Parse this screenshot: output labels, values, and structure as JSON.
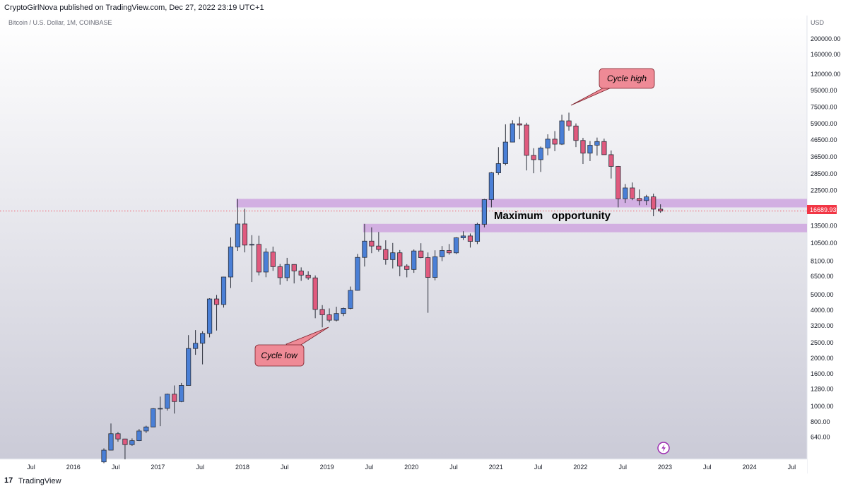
{
  "header": {
    "published": "CryptoGirlNova published on TradingView.com, Dec 27, 2022 23:19 UTC+1"
  },
  "footer": {
    "brand": "TradingView",
    "logo_glyph": "17"
  },
  "chart_data": {
    "type": "candlestick",
    "title": "Bitcoin / U.S. Dollar, 1M, COINBASE",
    "currency": "USD",
    "scale": "log",
    "ylim": [
      470,
      280000
    ],
    "x_ticks": [
      "Jul",
      "2016",
      "Jul",
      "2017",
      "Jul",
      "2018",
      "Jul",
      "2019",
      "Jul",
      "2020",
      "Jul",
      "2021",
      "Jul",
      "2022",
      "Jul",
      "2023",
      "Jul",
      "2024",
      "Jul"
    ],
    "y_ticks": [
      "200000.00",
      "160000.00",
      "120000.00",
      "95000.00",
      "75000.00",
      "59000.00",
      "46500.00",
      "36500.00",
      "28500.00",
      "22500.00",
      "17500.00",
      "13500.00",
      "10500.00",
      "8100.00",
      "6500.00",
      "5000.00",
      "4000.00",
      "3200.00",
      "2500.00",
      "2000.00",
      "1600.00",
      "1280.00",
      "1000.00",
      "800.00",
      "640.00"
    ],
    "y_tick_values": [
      200000,
      160000,
      120000,
      95000,
      75000,
      59000,
      46500,
      36500,
      28500,
      22500,
      17500,
      13500,
      10500,
      8100,
      6500,
      5000,
      4000,
      3200,
      2500,
      2000,
      1600,
      1280,
      1000,
      800,
      640
    ],
    "last_price": "16689.93",
    "colors": {
      "up": "#4a7fd6",
      "down": "#e05a7e",
      "outline": "#2a2e39",
      "zone": "#cfa9e0",
      "callout": "#ef8a96",
      "price_tag": "#f23645"
    },
    "candles": [
      [
        "2016-05",
        448,
        545,
        440,
        531
      ],
      [
        "2016-06",
        531,
        780,
        530,
        673
      ],
      [
        "2016-07",
        673,
        690,
        600,
        624
      ],
      [
        "2016-08",
        624,
        626,
        465,
        575
      ],
      [
        "2016-09",
        575,
        629,
        565,
        609
      ],
      [
        "2016-10",
        609,
        720,
        605,
        700
      ],
      [
        "2016-11",
        700,
        755,
        680,
        742
      ],
      [
        "2016-12",
        742,
        975,
        740,
        966
      ],
      [
        "2017-01",
        966,
        1150,
        750,
        970
      ],
      [
        "2017-02",
        970,
        1200,
        940,
        1190
      ],
      [
        "2017-03",
        1190,
        1350,
        900,
        1070
      ],
      [
        "2017-04",
        1070,
        1400,
        1060,
        1350
      ],
      [
        "2017-05",
        1350,
        2790,
        1350,
        2300
      ],
      [
        "2017-06",
        2300,
        3000,
        2100,
        2480
      ],
      [
        "2017-07",
        2480,
        2950,
        1830,
        2860
      ],
      [
        "2017-08",
        2860,
        4750,
        2700,
        4700
      ],
      [
        "2017-09",
        4700,
        4980,
        2980,
        4340
      ],
      [
        "2017-10",
        4340,
        6470,
        4150,
        6450
      ],
      [
        "2017-11",
        6450,
        11400,
        5500,
        9950
      ],
      [
        "2017-12",
        9950,
        19890,
        9400,
        13860
      ],
      [
        "2018-01",
        13860,
        17250,
        9200,
        10220
      ],
      [
        "2018-02",
        10220,
        11790,
        6000,
        10330
      ],
      [
        "2018-03",
        10330,
        11700,
        6600,
        6930
      ],
      [
        "2018-04",
        6930,
        9760,
        6430,
        9240
      ],
      [
        "2018-05",
        9240,
        10000,
        7050,
        7490
      ],
      [
        "2018-06",
        7490,
        7780,
        5780,
        6390
      ],
      [
        "2018-07",
        6390,
        8500,
        6070,
        7730
      ],
      [
        "2018-08",
        7730,
        7760,
        5880,
        7040
      ],
      [
        "2018-09",
        7040,
        7410,
        6100,
        6630
      ],
      [
        "2018-10",
        6630,
        7000,
        6200,
        6370
      ],
      [
        "2018-11",
        6370,
        6600,
        3560,
        4040
      ],
      [
        "2018-12",
        4040,
        4300,
        3120,
        3740
      ],
      [
        "2019-01",
        3740,
        4100,
        3350,
        3460
      ],
      [
        "2019-02",
        3460,
        4200,
        3400,
        3810
      ],
      [
        "2019-03",
        3810,
        4150,
        3670,
        4100
      ],
      [
        "2019-04",
        4100,
        5620,
        4050,
        5320
      ],
      [
        "2019-05",
        5320,
        9000,
        5300,
        8560
      ],
      [
        "2019-06",
        8560,
        13880,
        7500,
        10820
      ],
      [
        "2019-07",
        10820,
        13200,
        9100,
        10080
      ],
      [
        "2019-08",
        10080,
        12350,
        9300,
        9590
      ],
      [
        "2019-09",
        9590,
        10950,
        7700,
        8290
      ],
      [
        "2019-10",
        8290,
        10540,
        7300,
        9150
      ],
      [
        "2019-11",
        9150,
        9520,
        6520,
        7550
      ],
      [
        "2019-12",
        7550,
        7750,
        6420,
        7190
      ],
      [
        "2020-01",
        7190,
        9600,
        6850,
        9390
      ],
      [
        "2020-02",
        9390,
        10500,
        8450,
        8530
      ],
      [
        "2020-03",
        8530,
        9190,
        3850,
        6410
      ],
      [
        "2020-04",
        6410,
        9480,
        6150,
        8640
      ],
      [
        "2020-05",
        8640,
        10080,
        8110,
        9450
      ],
      [
        "2020-06",
        9450,
        10380,
        8900,
        9140
      ],
      [
        "2020-07",
        9140,
        11450,
        8990,
        11350
      ],
      [
        "2020-08",
        11350,
        12480,
        11000,
        11660
      ],
      [
        "2020-09",
        11660,
        12080,
        9860,
        10780
      ],
      [
        "2020-10",
        10780,
        14100,
        10370,
        13800
      ],
      [
        "2020-11",
        13800,
        19900,
        13200,
        19700
      ],
      [
        "2020-12",
        19700,
        29300,
        17600,
        28990
      ],
      [
        "2021-01",
        28990,
        41950,
        28130,
        33110
      ],
      [
        "2021-02",
        33110,
        58330,
        32300,
        45140
      ],
      [
        "2021-03",
        45140,
        61800,
        45000,
        58790
      ],
      [
        "2021-04",
        58790,
        64900,
        47000,
        57720
      ],
      [
        "2021-05",
        57720,
        59600,
        30000,
        37300
      ],
      [
        "2021-06",
        37300,
        41330,
        28800,
        35040
      ],
      [
        "2021-07",
        35040,
        42320,
        29360,
        41460
      ],
      [
        "2021-08",
        41460,
        50500,
        37330,
        47100
      ],
      [
        "2021-09",
        47100,
        52920,
        39600,
        43820
      ],
      [
        "2021-10",
        43820,
        66930,
        43300,
        61310
      ],
      [
        "2021-11",
        61310,
        69000,
        53250,
        56950
      ],
      [
        "2021-12",
        56950,
        59100,
        42000,
        46210
      ],
      [
        "2022-01",
        46210,
        47990,
        32930,
        38480
      ],
      [
        "2022-02",
        38480,
        45820,
        34320,
        43160
      ],
      [
        "2022-03",
        43160,
        48190,
        37150,
        45530
      ],
      [
        "2022-04",
        45530,
        47440,
        37700,
        37640
      ],
      [
        "2022-05",
        37640,
        40000,
        26700,
        31790
      ],
      [
        "2022-06",
        31790,
        31990,
        17600,
        19930
      ],
      [
        "2022-07",
        19930,
        24670,
        18780,
        23300
      ],
      [
        "2022-08",
        23300,
        25210,
        19540,
        20050
      ],
      [
        "2022-09",
        20050,
        22800,
        18150,
        19420
      ],
      [
        "2022-10",
        19420,
        21100,
        18200,
        20490
      ],
      [
        "2022-11",
        20490,
        21470,
        15500,
        17170
      ],
      [
        "2022-12",
        17170,
        18400,
        16300,
        16690
      ]
    ],
    "zones": [
      {
        "from": "2017-12",
        "low": 17600,
        "high": 19900,
        "to": "end"
      },
      {
        "from": "2019-06",
        "low": 12300,
        "high": 13880,
        "to": "end"
      }
    ],
    "annotations": {
      "cycle_high": "Cycle high",
      "cycle_low": "Cycle low",
      "max_opportunity": "Maximum   opportunity"
    }
  }
}
